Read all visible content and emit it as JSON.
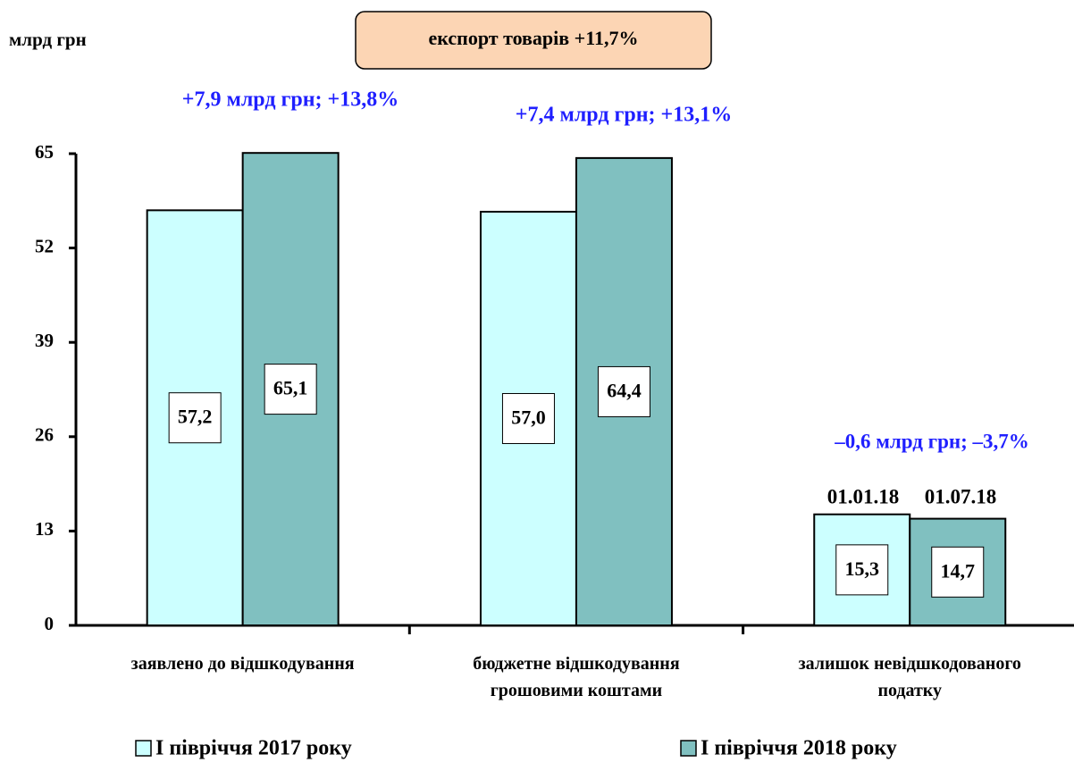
{
  "chart_data": {
    "type": "bar",
    "y_label": "млрд грн",
    "categories": [
      "заявлено до відшкодування",
      "бюджетне відшкодування\nгрошовими коштами",
      "залишок невідшкодованого\nподатку"
    ],
    "series": [
      {
        "name": "І півріччя 2017 року",
        "color": "#ccffff",
        "values": [
          57.2,
          57.0,
          15.3
        ],
        "value_labels": [
          "57,2",
          "57,0",
          "15,3"
        ]
      },
      {
        "name": "І півріччя 2018 року",
        "color": "#80c0c0",
        "values": [
          65.1,
          64.4,
          14.7
        ],
        "value_labels": [
          "65,1",
          "64,4",
          "14,7"
        ]
      }
    ],
    "ylim": [
      0,
      65
    ],
    "yticks": [
      0,
      13,
      26,
      39,
      52,
      65
    ],
    "headline": "експорт товарів +11,7%",
    "annotations": [
      "+7,9 млрд грн; +13,8%",
      "+7,4 млрд грн; +13,1%",
      "–0,6 млрд грн; –3,7%",
      "01.01.18",
      "01.07.18"
    ]
  }
}
